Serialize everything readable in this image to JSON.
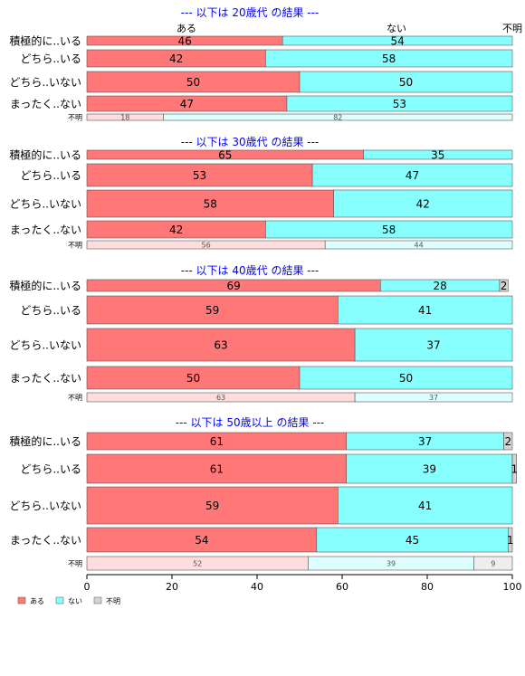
{
  "colors": {
    "aru": "#ff7777",
    "nai": "#88ffff",
    "fumei": "#d3d3d3",
    "aru_light": "#ffdddd",
    "nai_light": "#ddffff",
    "fumei_light": "#eeeeee",
    "title": "#0000ff"
  },
  "header_labels": {
    "aru": "ある",
    "nai": "ない",
    "fumei": "不明"
  },
  "legend": [
    {
      "key": "aru",
      "label": "ある"
    },
    {
      "key": "nai",
      "label": "ない"
    },
    {
      "key": "fumei",
      "label": "不明"
    }
  ],
  "chart_data": {
    "type": "bar",
    "orientation": "horizontal-stacked-100",
    "xlim": [
      0,
      100
    ],
    "xticks": [
      0,
      20,
      40,
      60,
      80,
      100
    ],
    "series_names": [
      "ある",
      "ない",
      "不明"
    ],
    "panels": [
      {
        "title": "--- 以下は 20歳代 の結果 ---",
        "rows": [
          {
            "label": "積極的に..いる",
            "values": [
              46,
              54,
              0
            ]
          },
          {
            "label": "どちら..いる",
            "values": [
              42,
              58,
              0
            ]
          },
          {
            "label": "どちら..いない",
            "values": [
              50,
              50,
              0
            ]
          },
          {
            "label": "まったく..ない",
            "values": [
              47,
              53,
              0
            ]
          }
        ],
        "fumei_row": {
          "label": "不明",
          "values": [
            18,
            82,
            0
          ]
        }
      },
      {
        "title": "--- 以下は 30歳代 の結果 ---",
        "rows": [
          {
            "label": "積極的に..いる",
            "values": [
              65,
              35,
              0
            ]
          },
          {
            "label": "どちら..いる",
            "values": [
              53,
              47,
              0
            ]
          },
          {
            "label": "どちら..いない",
            "values": [
              58,
              42,
              0
            ]
          },
          {
            "label": "まったく..ない",
            "values": [
              42,
              58,
              0
            ]
          }
        ],
        "fumei_row": {
          "label": "不明",
          "values": [
            56,
            44,
            0
          ]
        }
      },
      {
        "title": "--- 以下は 40歳代 の結果 ---",
        "rows": [
          {
            "label": "積極的に..いる",
            "values": [
              69,
              28,
              2
            ]
          },
          {
            "label": "どちら..いる",
            "values": [
              59,
              41,
              0
            ]
          },
          {
            "label": "どちら..いない",
            "values": [
              63,
              37,
              0
            ]
          },
          {
            "label": "まったく..ない",
            "values": [
              50,
              50,
              0
            ]
          }
        ],
        "fumei_row": {
          "label": "不明",
          "values": [
            63,
            37,
            0
          ]
        }
      },
      {
        "title": "--- 以下は 50歳以上 の結果 ---",
        "rows": [
          {
            "label": "積極的に..いる",
            "values": [
              61,
              37,
              2
            ]
          },
          {
            "label": "どちら..いる",
            "values": [
              61,
              39,
              1
            ]
          },
          {
            "label": "どちら..いない",
            "values": [
              59,
              41,
              0
            ]
          },
          {
            "label": "まったく..ない",
            "values": [
              54,
              45,
              1
            ]
          }
        ],
        "fumei_row": {
          "label": "不明",
          "values": [
            52,
            39,
            9
          ]
        }
      }
    ]
  }
}
